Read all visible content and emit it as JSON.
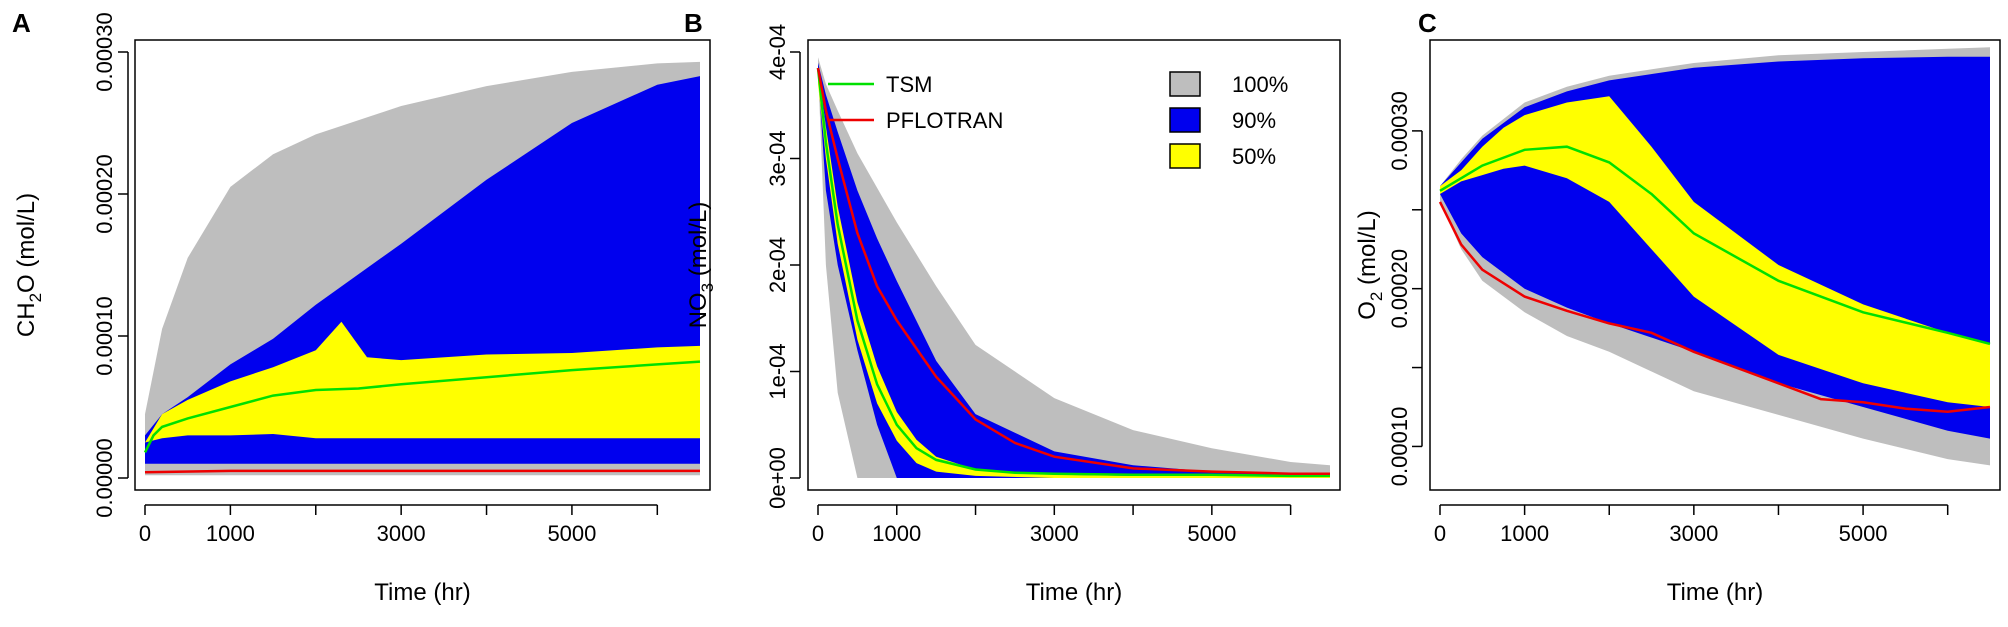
{
  "chart_data": [
    {
      "panel": "A",
      "type": "area",
      "xlabel": "Time  (hr)",
      "ylabel_parts": [
        "CH",
        "2",
        "O (mol/L)"
      ],
      "xlim": [
        0,
        6500
      ],
      "ylim": [
        0.0,
        0.0003
      ],
      "xticks": [
        0,
        1000,
        2000,
        3000,
        4000,
        5000,
        6000
      ],
      "xtick_labels": [
        "0",
        "1000",
        "",
        "3000",
        "",
        "5000",
        ""
      ],
      "yticks": [
        0.0,
        0.0001,
        0.0002,
        0.0003
      ],
      "ytick_labels": [
        "0.00000",
        "0.00010",
        "0.00020",
        "0.00030"
      ],
      "bands": [
        {
          "name": "100%",
          "color": "#bebebe",
          "x": [
            0,
            200,
            500,
            1000,
            1500,
            2000,
            3000,
            4000,
            5000,
            6000,
            6500
          ],
          "lower": [
            2e-06,
            2e-06,
            2e-06,
            2e-06,
            2e-06,
            2e-06,
            2e-06,
            2e-06,
            2e-06,
            2e-06,
            2e-06
          ],
          "upper": [
            4.5e-05,
            0.000105,
            0.000155,
            0.000205,
            0.000228,
            0.000242,
            0.000262,
            0.000276,
            0.000286,
            0.000292,
            0.000293
          ]
        },
        {
          "name": "90%",
          "color": "#0000ee",
          "x": [
            0,
            200,
            500,
            1000,
            1500,
            2000,
            3000,
            4000,
            5000,
            6000,
            6500
          ],
          "lower": [
            1e-05,
            1e-05,
            1e-05,
            1e-05,
            1e-05,
            1e-05,
            1e-05,
            1e-05,
            1e-05,
            1e-05,
            1e-05
          ],
          "upper": [
            3e-05,
            4.5e-05,
            5.7e-05,
            8e-05,
            9.8e-05,
            0.000122,
            0.000165,
            0.00021,
            0.00025,
            0.000277,
            0.000283
          ]
        },
        {
          "name": "50%",
          "color": "#ffff00",
          "x": [
            0,
            200,
            500,
            1000,
            1500,
            2000,
            2300,
            2600,
            3000,
            4000,
            5000,
            6000,
            6500
          ],
          "lower": [
            2.5e-05,
            2.8e-05,
            3e-05,
            3e-05,
            3.1e-05,
            2.8e-05,
            2.8e-05,
            2.8e-05,
            2.8e-05,
            2.8e-05,
            2.8e-05,
            2.8e-05,
            2.8e-05
          ],
          "upper": [
            2.5e-05,
            4.5e-05,
            5.5e-05,
            6.8e-05,
            7.8e-05,
            9e-05,
            0.00011,
            8.5e-05,
            8.3e-05,
            8.7e-05,
            8.8e-05,
            9.2e-05,
            9.3e-05
          ]
        }
      ],
      "series": [
        {
          "name": "TSM",
          "color": "#00e000",
          "x": [
            0,
            100,
            200,
            500,
            1000,
            1500,
            2000,
            2500,
            3000,
            4000,
            5000,
            6000,
            6500
          ],
          "y": [
            1.8e-05,
            3e-05,
            3.6e-05,
            4.2e-05,
            5e-05,
            5.8e-05,
            6.2e-05,
            6.3e-05,
            6.6e-05,
            7.1e-05,
            7.6e-05,
            8e-05,
            8.2e-05
          ]
        },
        {
          "name": "PFLOTRAN",
          "color": "#ee0000",
          "x": [
            0,
            1000,
            2000,
            3000,
            4000,
            5000,
            6000,
            6500
          ],
          "y": [
            4e-06,
            5e-06,
            5e-06,
            5e-06,
            5e-06,
            5e-06,
            5e-06,
            5e-06
          ]
        }
      ]
    },
    {
      "panel": "B",
      "type": "area",
      "xlabel": "Time  (hr)",
      "ylabel_parts": [
        "NO",
        "3",
        " (mol/L)"
      ],
      "xlim": [
        0,
        6500
      ],
      "ylim": [
        0.0,
        0.0004
      ],
      "xticks": [
        0,
        1000,
        2000,
        3000,
        4000,
        5000,
        6000
      ],
      "xtick_labels": [
        "0",
        "1000",
        "",
        "3000",
        "",
        "5000",
        ""
      ],
      "yticks": [
        0.0,
        0.0001,
        0.0002,
        0.0003,
        0.0004
      ],
      "ytick_labels": [
        "0e+00",
        "1e-04",
        "2e-04",
        "3e-04",
        "4e-04"
      ],
      "bands": [
        {
          "name": "100%",
          "color": "#bebebe",
          "x": [
            0,
            100,
            250,
            500,
            1000,
            1500,
            2000,
            3000,
            4000,
            5000,
            6000,
            6500
          ],
          "lower": [
            0.000385,
            0.0002,
            8e-05,
            0.0,
            0.0,
            0.0,
            0.0,
            0.0,
            0.0,
            0.0,
            0.0,
            0.0
          ],
          "upper": [
            0.000395,
            0.00037,
            0.000345,
            0.000305,
            0.00024,
            0.00018,
            0.000125,
            7.5e-05,
            4.5e-05,
            2.8e-05,
            1.5e-05,
            1.2e-05
          ]
        },
        {
          "name": "90%",
          "color": "#0000ee",
          "x": [
            0,
            100,
            250,
            500,
            750,
            1000,
            1500,
            2000,
            3000,
            4000,
            5000,
            6000,
            6500
          ],
          "lower": [
            0.00038,
            0.00027,
            0.0002,
            0.00012,
            5e-05,
            0.0,
            0.0,
            0.0,
            0.0,
            0.0,
            0.0,
            0.0,
            0.0
          ],
          "upper": [
            0.00039,
            0.00036,
            0.000325,
            0.00027,
            0.000225,
            0.000185,
            0.00011,
            6e-05,
            2.5e-05,
            1.2e-05,
            6e-06,
            4e-06,
            3e-06
          ]
        },
        {
          "name": "50%",
          "color": "#ffff00",
          "x": [
            0,
            100,
            250,
            500,
            750,
            1000,
            1250,
            1500,
            2000,
            3000,
            4000,
            5000,
            6000,
            6500
          ],
          "lower": [
            0.00037,
            0.0003,
            0.00022,
            0.00013,
            7e-05,
            3.5e-05,
            1.4e-05,
            6e-06,
            2e-06,
            0.0,
            0.0,
            0.0,
            0.0,
            0.0
          ],
          "upper": [
            0.000385,
            0.00033,
            0.000255,
            0.000165,
            0.000105,
            6.2e-05,
            3.6e-05,
            2e-05,
            8e-06,
            3e-06,
            2e-06,
            2e-06,
            2e-06,
            2e-06
          ]
        }
      ],
      "series": [
        {
          "name": "TSM",
          "color": "#00e000",
          "x": [
            0,
            100,
            250,
            500,
            750,
            1000,
            1250,
            1500,
            2000,
            2500,
            3000,
            4000,
            5000,
            6000,
            6500
          ],
          "y": [
            0.000385,
            0.000315,
            0.000238,
            0.000148,
            8.8e-05,
            5e-05,
            2.8e-05,
            1.7e-05,
            8e-06,
            5e-06,
            4e-06,
            3e-06,
            3e-06,
            2e-06,
            2e-06
          ]
        },
        {
          "name": "PFLOTRAN",
          "color": "#ee0000",
          "x": [
            0,
            100,
            250,
            500,
            750,
            1000,
            1500,
            2000,
            2500,
            3000,
            4000,
            5000,
            6000,
            6500
          ],
          "y": [
            0.000385,
            0.000345,
            0.0003,
            0.00023,
            0.00018,
            0.000148,
            9.5e-05,
            5.5e-05,
            3.3e-05,
            2e-05,
            9e-06,
            6e-06,
            4e-06,
            4e-06
          ]
        }
      ],
      "legend": {
        "lines": [
          {
            "label": "TSM",
            "color": "#00e000"
          },
          {
            "label": "PFLOTRAN",
            "color": "#ee0000"
          }
        ],
        "boxes": [
          {
            "label": "100%",
            "color": "#bebebe"
          },
          {
            "label": "90%",
            "color": "#0000ee"
          },
          {
            "label": "50%",
            "color": "#ffff00"
          }
        ]
      }
    },
    {
      "panel": "C",
      "type": "area",
      "xlabel": "Time  (hr)",
      "ylabel_parts": [
        "O",
        "2",
        " (mol/L)"
      ],
      "xlim": [
        0,
        6500
      ],
      "ylim": [
        8e-05,
        0.00035
      ],
      "xticks": [
        0,
        1000,
        2000,
        3000,
        4000,
        5000,
        6000
      ],
      "xtick_labels": [
        "0",
        "1000",
        "",
        "3000",
        "",
        "5000",
        ""
      ],
      "yticks": [
        0.0001,
        0.00015,
        0.0002,
        0.00025,
        0.0003
      ],
      "ytick_labels": [
        "0.00010",
        "",
        "0.00020",
        "",
        "0.00030"
      ],
      "bands": [
        {
          "name": "100%",
          "color": "#bebebe",
          "x": [
            0,
            250,
            500,
            1000,
            1500,
            2000,
            3000,
            4000,
            5000,
            6000,
            6500
          ],
          "lower": [
            0.000255,
            0.000225,
            0.000205,
            0.000185,
            0.00017,
            0.00016,
            0.000135,
            0.00012,
            0.000105,
            9.2e-05,
            8.8e-05
          ],
          "upper": [
            0.000265,
            0.000282,
            0.000297,
            0.000318,
            0.000328,
            0.000335,
            0.000343,
            0.000348,
            0.00035,
            0.000352,
            0.000353
          ]
        },
        {
          "name": "90%",
          "color": "#0000ee",
          "x": [
            0,
            250,
            500,
            1000,
            1500,
            2000,
            3000,
            4000,
            5000,
            6000,
            6500
          ],
          "lower": [
            0.00026,
            0.000235,
            0.00022,
            0.0002,
            0.000188,
            0.000178,
            0.00016,
            0.00014,
            0.000125,
            0.00011,
            0.000105
          ],
          "upper": [
            0.000265,
            0.00028,
            0.000295,
            0.000315,
            0.000325,
            0.000332,
            0.00034,
            0.000344,
            0.000346,
            0.000347,
            0.000347
          ]
        },
        {
          "name": "50%",
          "color": "#ffff00",
          "x": [
            0,
            250,
            500,
            750,
            1000,
            1500,
            2000,
            2500,
            3000,
            4000,
            5000,
            6000,
            6500
          ],
          "lower": [
            0.00026,
            0.000268,
            0.000272,
            0.000276,
            0.000278,
            0.00027,
            0.000255,
            0.000225,
            0.000195,
            0.000158,
            0.00014,
            0.000128,
            0.000125
          ],
          "upper": [
            0.000265,
            0.000275,
            0.00029,
            0.000302,
            0.00031,
            0.000318,
            0.000322,
            0.00029,
            0.000255,
            0.000215,
            0.00019,
            0.000172,
            0.000165
          ]
        }
      ],
      "series": [
        {
          "name": "TSM",
          "color": "#00e000",
          "x": [
            0,
            250,
            500,
            1000,
            1500,
            2000,
            2500,
            3000,
            4000,
            5000,
            6000,
            6500
          ],
          "y": [
            0.000262,
            0.00027,
            0.000278,
            0.000288,
            0.00029,
            0.00028,
            0.00026,
            0.000235,
            0.000205,
            0.000185,
            0.000172,
            0.000165
          ]
        },
        {
          "name": "PFLOTRAN",
          "color": "#ee0000",
          "x": [
            0,
            250,
            500,
            1000,
            1500,
            2000,
            2500,
            3000,
            3500,
            4000,
            4500,
            5000,
            5500,
            6000,
            6500
          ],
          "y": [
            0.000255,
            0.000228,
            0.000212,
            0.000195,
            0.000186,
            0.000178,
            0.000172,
            0.00016,
            0.00015,
            0.00014,
            0.00013,
            0.000128,
            0.000124,
            0.000122,
            0.000125
          ]
        }
      ]
    }
  ]
}
